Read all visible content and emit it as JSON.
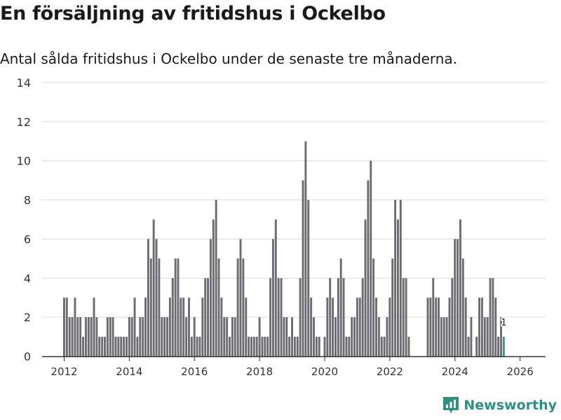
{
  "header": {
    "title": "En försäljning av fritidshus i Ockelbo",
    "subtitle": "Antal sålda fritidshus i Ockelbo under de senaste tre månaderna."
  },
  "brand": {
    "name": "Newsworthy",
    "icon": "newsworthy-logo-icon",
    "color": "#2f8f83"
  },
  "colors": {
    "bar": "#6b6b70",
    "highlight": "#2a9d8f",
    "grid": "#dcdcdc",
    "axis": "#333333"
  },
  "chart_data": {
    "type": "bar",
    "title": "En försäljning av fritidshus i Ockelbo",
    "xlabel": "",
    "ylabel": "",
    "x_start": "2012-01",
    "x_end": "2026-01",
    "ylim": [
      0,
      14
    ],
    "y_ticks": [
      "0",
      "2",
      "4",
      "6",
      "8",
      "10",
      "12",
      "14"
    ],
    "x_ticks": [
      "2012",
      "2014",
      "2016",
      "2018",
      "2020",
      "2022",
      "2024",
      "2026"
    ],
    "values": [
      3,
      3,
      2,
      2,
      3,
      2,
      2,
      1,
      2,
      2,
      2,
      3,
      2,
      1,
      1,
      1,
      2,
      2,
      2,
      1,
      1,
      1,
      1,
      1,
      2,
      2,
      3,
      1,
      2,
      2,
      3,
      6,
      5,
      7,
      6,
      5,
      2,
      2,
      2,
      3,
      4,
      5,
      5,
      3,
      3,
      2,
      3,
      1,
      2,
      1,
      1,
      3,
      4,
      4,
      6,
      7,
      8,
      5,
      3,
      2,
      2,
      1,
      2,
      2,
      5,
      6,
      5,
      3,
      1,
      1,
      1,
      1,
      2,
      1,
      1,
      1,
      4,
      6,
      7,
      4,
      4,
      2,
      2,
      1,
      2,
      1,
      1,
      4,
      9,
      11,
      8,
      3,
      2,
      1,
      1,
      0,
      1,
      3,
      4,
      3,
      2,
      4,
      5,
      4,
      1,
      1,
      2,
      2,
      3,
      3,
      4,
      7,
      9,
      10,
      5,
      3,
      2,
      1,
      1,
      2,
      3,
      5,
      8,
      7,
      8,
      4,
      4,
      1,
      0,
      0,
      0,
      0,
      0,
      0,
      3,
      3,
      4,
      3,
      3,
      2,
      2,
      2,
      3,
      4,
      6,
      6,
      7,
      5,
      3,
      1,
      2,
      0,
      1,
      3,
      3,
      2,
      2,
      4,
      4,
      3,
      1,
      2,
      1
    ],
    "highlight_label": "1",
    "gridlines": true
  }
}
